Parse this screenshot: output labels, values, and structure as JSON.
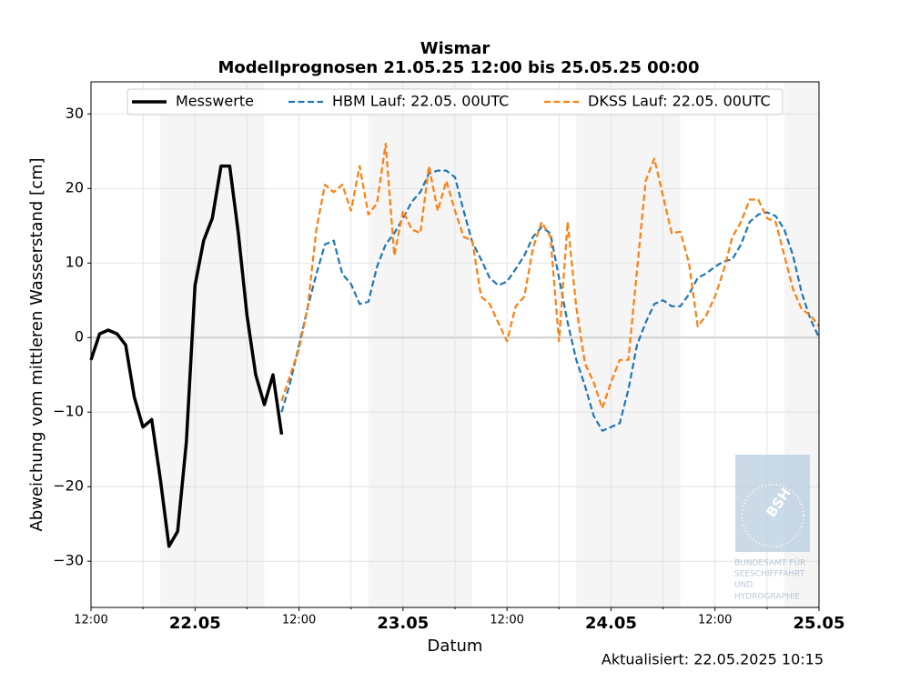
{
  "chart_data": {
    "type": "line",
    "title": "Wismar",
    "subtitle": "Modellprognosen 21.05.25 12:00 bis 25.05.25 00:00",
    "x_label": "Datum",
    "y_label": "Abweichung vom mittleren Wasserstand [cm]",
    "footer": "Aktualisiert: 22.05.2025 10:15",
    "logo": {
      "mark": "BSH",
      "lines": [
        "BUNDESAMT FÜR",
        "SEESCHIFFFAHRT",
        "UND",
        "HYDROGRAPHIE"
      ]
    },
    "grid": true,
    "legend": "upper center",
    "xlim": [
      "21.05 12:00",
      "25.05 00:00"
    ],
    "ylim": [
      -36.2,
      34.3
    ],
    "yticks": [
      {
        "value": -30,
        "label": "−30"
      },
      {
        "value": -20,
        "label": "−20"
      },
      {
        "value": -10,
        "label": "−10"
      },
      0,
      10,
      20,
      30
    ],
    "xticks": [
      {
        "value": "21.05 12:00",
        "label": "12:00"
      },
      {
        "value": "22.05 00:00",
        "label": "22.05"
      },
      {
        "value": "22.05 12:00",
        "label": "12:00"
      },
      {
        "value": "23.05 00:00",
        "label": "23.05"
      },
      {
        "value": "23.05 12:00",
        "label": "12:00"
      },
      {
        "value": "24.05 00:00",
        "label": "24.05"
      },
      {
        "value": "24.05 12:00",
        "label": "12:00"
      },
      {
        "value": "25.05 00:00",
        "label": "25.05"
      }
    ],
    "xticks_minor": [
      "21.05 18:00",
      "22.05 06:00",
      "22.05 18:00",
      "23.05 06:00",
      "23.05 18:00",
      "24.05 06:00",
      "24.05 18:00"
    ],
    "shaded_spans": [
      [
        "21.05 20:00",
        "22.05 08:00"
      ],
      [
        "22.05 20:00",
        "23.05 08:00"
      ],
      [
        "23.05 20:00",
        "24.05 08:00"
      ],
      [
        "24.05 20:00",
        "25.05 00:00"
      ]
    ],
    "x": [
      "21.05 12:00",
      "21.05 13:00",
      "21.05 14:00",
      "21.05 15:00",
      "21.05 16:00",
      "21.05 17:00",
      "21.05 18:00",
      "21.05 19:00",
      "21.05 20:00",
      "21.05 21:00",
      "21.05 22:00",
      "21.05 23:00",
      "22.05 00:00",
      "22.05 01:00",
      "22.05 02:00",
      "22.05 03:00",
      "22.05 04:00",
      "22.05 05:00",
      "22.05 06:00",
      "22.05 07:00",
      "22.05 08:00",
      "22.05 09:00",
      "22.05 10:00",
      "22.05 11:00",
      "22.05 12:00",
      "22.05 13:00",
      "22.05 14:00",
      "22.05 15:00",
      "22.05 16:00",
      "22.05 17:00",
      "22.05 18:00",
      "22.05 19:00",
      "22.05 20:00",
      "22.05 21:00",
      "22.05 22:00",
      "22.05 23:00",
      "23.05 00:00",
      "23.05 01:00",
      "23.05 02:00",
      "23.05 03:00",
      "23.05 04:00",
      "23.05 05:00",
      "23.05 06:00",
      "23.05 07:00",
      "23.05 08:00",
      "23.05 09:00",
      "23.05 10:00",
      "23.05 11:00",
      "23.05 12:00",
      "23.05 13:00",
      "23.05 14:00",
      "23.05 15:00",
      "23.05 16:00",
      "23.05 17:00",
      "23.05 18:00",
      "23.05 19:00",
      "23.05 20:00",
      "23.05 21:00",
      "23.05 22:00",
      "23.05 23:00",
      "24.05 00:00",
      "24.05 01:00",
      "24.05 02:00",
      "24.05 03:00",
      "24.05 04:00",
      "24.05 05:00",
      "24.05 06:00",
      "24.05 07:00",
      "24.05 08:00",
      "24.05 09:00",
      "24.05 10:00",
      "24.05 11:00",
      "24.05 12:00",
      "24.05 13:00",
      "24.05 14:00",
      "24.05 15:00",
      "24.05 16:00",
      "24.05 17:00",
      "24.05 18:00",
      "24.05 19:00",
      "24.05 20:00",
      "24.05 21:00",
      "24.05 22:00",
      "24.05 23:00",
      "25.05 00:00"
    ],
    "series": [
      {
        "name": "Messwerte",
        "color": "#000000",
        "dash": false,
        "values": [
          -3,
          0.5,
          1,
          0.5,
          -1,
          -8,
          -12,
          -11,
          -19,
          -28,
          -26,
          -14,
          7,
          13,
          16,
          23,
          23,
          14,
          3,
          -5,
          -9,
          -5,
          -13,
          null,
          null,
          null,
          null,
          null,
          null,
          null,
          null,
          null,
          null,
          null,
          null,
          null,
          null,
          null,
          null,
          null,
          null,
          null,
          null,
          null,
          null,
          null,
          null,
          null,
          null,
          null,
          null,
          null,
          null,
          null,
          null,
          null,
          null,
          null,
          null,
          null,
          null,
          null,
          null,
          null,
          null,
          null,
          null,
          null,
          null,
          null,
          null,
          null,
          null,
          null,
          null,
          null,
          null,
          null,
          null,
          null,
          null,
          null,
          null,
          null,
          null
        ]
      },
      {
        "name": "HBM Lauf: 22.05. 00UTC",
        "color": "#1f77b4",
        "dash": true,
        "values": [
          null,
          null,
          null,
          null,
          null,
          null,
          null,
          null,
          null,
          null,
          null,
          null,
          null,
          null,
          null,
          null,
          null,
          null,
          null,
          null,
          null,
          null,
          -10,
          -6,
          -1,
          4,
          8.5,
          12.5,
          13,
          8.5,
          7.2,
          4.5,
          4.8,
          9.5,
          12.5,
          14,
          16,
          18.2,
          19.5,
          22,
          22.4,
          22.4,
          21.5,
          17,
          12.8,
          10.5,
          8,
          7,
          7.5,
          9.2,
          11,
          13.5,
          14.8,
          14,
          8,
          2,
          -3,
          -6.5,
          -10.5,
          -12.5,
          -12,
          -11.5,
          -7,
          -1,
          2,
          4.5,
          5,
          4.2,
          4.2,
          5.8,
          8,
          8.6,
          9.5,
          10.2,
          10.5,
          12.5,
          15.5,
          16.5,
          16.8,
          16.3,
          14.5,
          11,
          6,
          2.5,
          0
        ]
      },
      {
        "name": "DKSS Lauf: 22.05. 00UTC",
        "color": "#ff7f0e",
        "dash": true,
        "values": [
          null,
          null,
          null,
          null,
          null,
          null,
          null,
          null,
          null,
          null,
          null,
          null,
          null,
          null,
          null,
          null,
          null,
          null,
          null,
          null,
          null,
          null,
          -8.5,
          -5,
          -1.5,
          4,
          14.5,
          20.5,
          19.5,
          20.5,
          17,
          23,
          16.5,
          18,
          26,
          11,
          17,
          14.5,
          14,
          23,
          17,
          21,
          17,
          13.5,
          13,
          5.5,
          4.5,
          2,
          -0.5,
          4.2,
          5.5,
          12,
          15.5,
          13.5,
          -0.5,
          15.5,
          4,
          -3.5,
          -6,
          -9.5,
          -6,
          -3,
          -3,
          9,
          21,
          24,
          19,
          14,
          14.2,
          10,
          1.5,
          3,
          5.5,
          9,
          13.5,
          15.5,
          18.5,
          18.5,
          16,
          15.5,
          11,
          6.5,
          3.8,
          3,
          1.5
        ]
      }
    ]
  }
}
